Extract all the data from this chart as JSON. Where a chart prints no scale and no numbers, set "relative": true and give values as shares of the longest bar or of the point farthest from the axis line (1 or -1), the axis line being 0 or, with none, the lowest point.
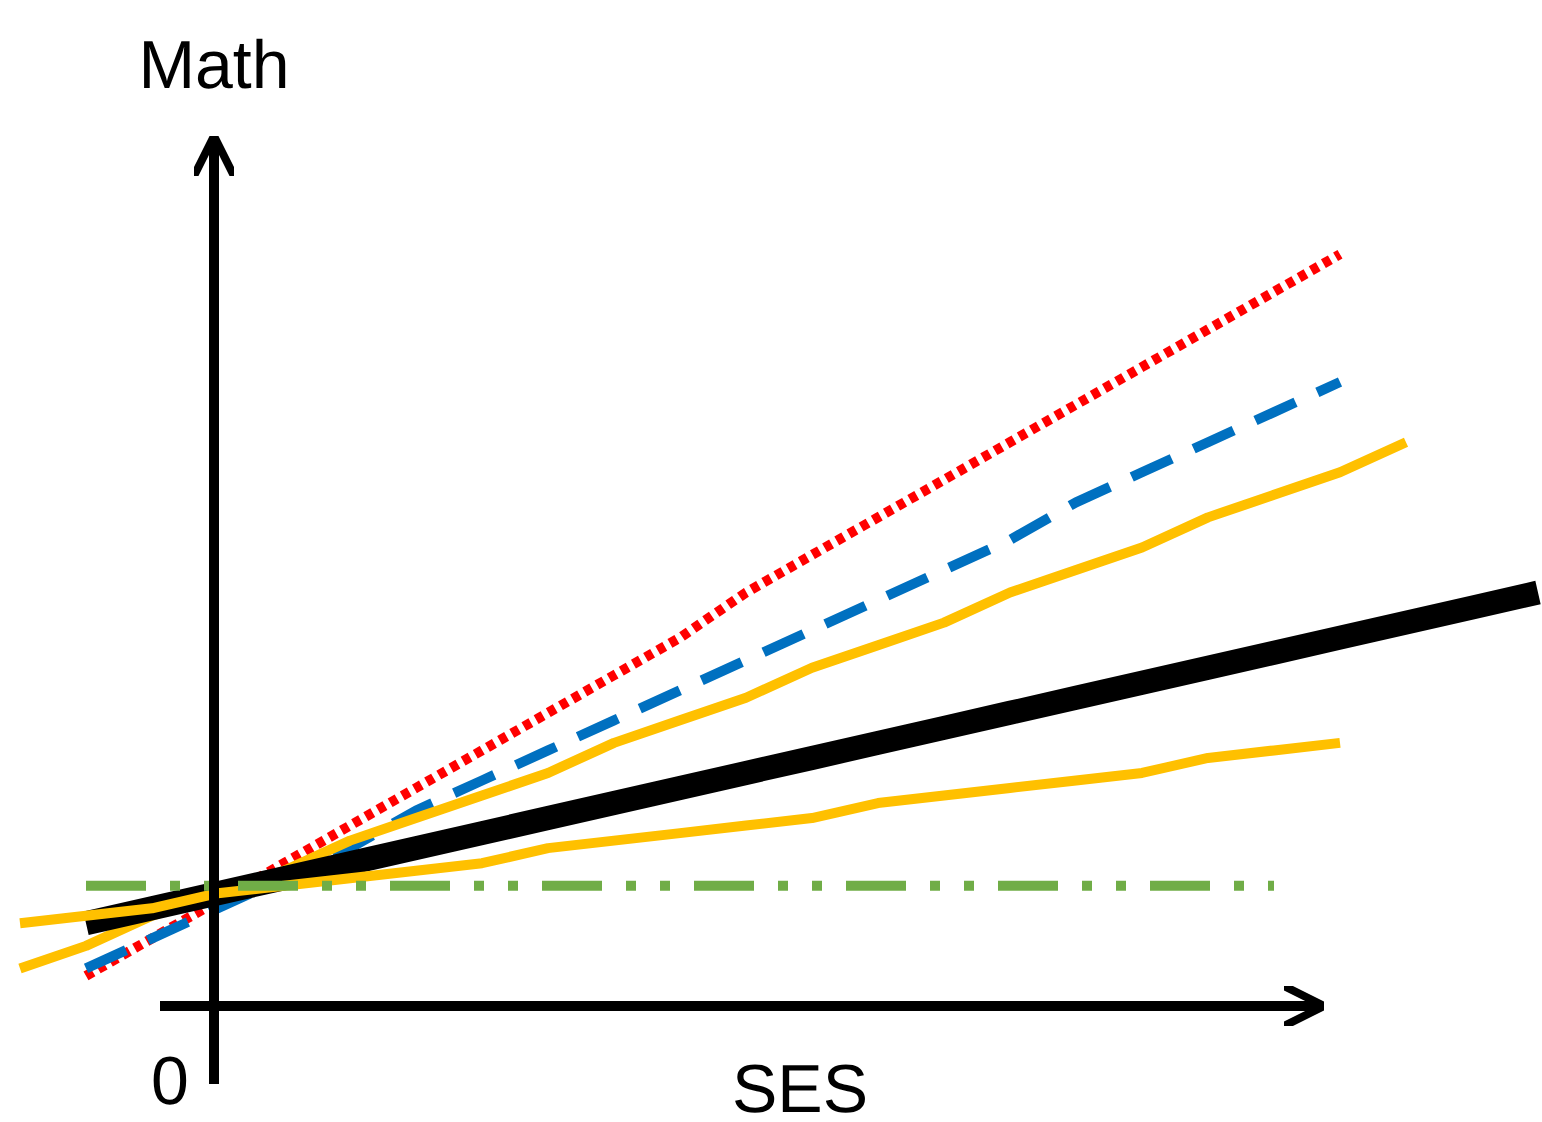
{
  "chart_data": {
    "type": "line",
    "relative": true,
    "xlabel": "SES",
    "ylabel": "Math",
    "annotations": [
      "0"
    ],
    "categories": [
      null,
      null,
      null,
      null,
      null,
      null,
      null,
      null,
      null,
      null,
      null,
      null,
      null,
      null,
      null,
      null,
      null,
      null,
      null,
      null,
      null,
      null,
      null,
      null
    ],
    "series": [
      {
        "color": "#ff0000",
        "line_style": "dotted",
        "values": [
          null,
          0.04,
          0.09,
          0.14,
          0.19,
          0.24,
          0.29,
          0.34,
          0.39,
          0.44,
          0.49,
          0.55,
          0.6,
          0.65,
          0.7,
          0.75,
          0.8,
          0.85,
          0.9,
          0.95,
          1.0,
          null,
          null,
          null
        ]
      },
      {
        "color": "#0070c0",
        "line_style": "dashed",
        "values": [
          null,
          0.05,
          0.09,
          0.13,
          0.17,
          0.21,
          0.26,
          0.3,
          0.34,
          0.38,
          0.42,
          0.46,
          0.5,
          0.54,
          0.58,
          0.62,
          0.67,
          0.71,
          0.75,
          0.79,
          0.83,
          null,
          null,
          null
        ]
      },
      {
        "color": "#ffc000",
        "line_style": "solid",
        "values": [
          0.05,
          0.08,
          0.12,
          0.15,
          0.18,
          0.22,
          0.25,
          0.28,
          0.31,
          0.35,
          0.38,
          0.41,
          0.45,
          0.48,
          0.51,
          0.55,
          0.58,
          0.61,
          0.65,
          0.68,
          0.71,
          0.75,
          null,
          null
        ]
      },
      {
        "color": "#000000",
        "line_style": "solid",
        "values": [
          null,
          0.11,
          0.13,
          0.15,
          0.17,
          0.19,
          0.21,
          0.23,
          0.25,
          0.27,
          0.29,
          0.31,
          0.33,
          0.35,
          0.37,
          0.39,
          0.41,
          0.43,
          0.45,
          0.47,
          0.49,
          0.51,
          0.53,
          0.55
        ]
      },
      {
        "color": "#ffc000",
        "line_style": "solid",
        "values": [
          0.11,
          0.12,
          0.13,
          0.15,
          0.16,
          0.17,
          0.18,
          0.19,
          0.21,
          0.22,
          0.23,
          0.24,
          0.25,
          0.27,
          0.28,
          0.29,
          0.3,
          0.31,
          0.33,
          0.34,
          0.35,
          null,
          null,
          null
        ]
      },
      {
        "color": "#70ad47",
        "line_style": "dashdot",
        "values": [
          null,
          0.16,
          0.16,
          0.16,
          0.16,
          0.16,
          0.16,
          0.16,
          0.16,
          0.16,
          0.16,
          0.16,
          0.16,
          0.16,
          0.16,
          0.16,
          0.16,
          0.16,
          0.16,
          0.16,
          null,
          null,
          null,
          null
        ]
      }
    ]
  }
}
